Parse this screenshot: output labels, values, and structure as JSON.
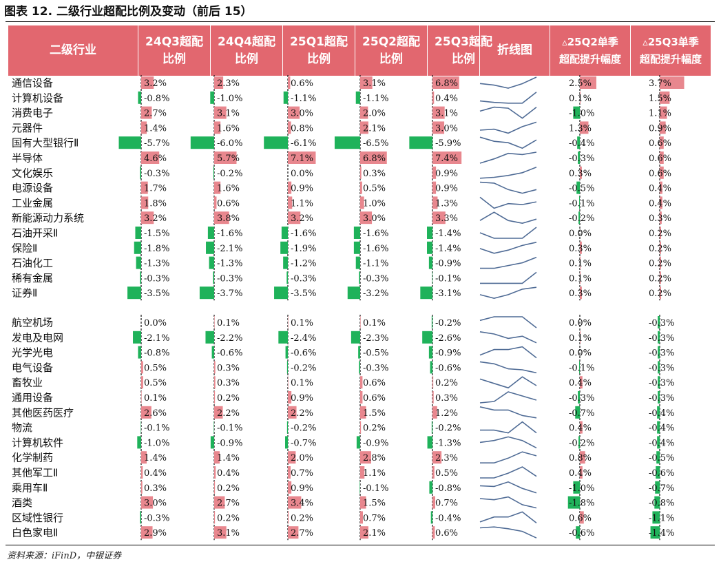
{
  "title": "图表 12. 二级行业超配比例及变动（前后 15）",
  "header": {
    "industry": "二级行业",
    "periods": [
      "24Q3超配\n比例",
      "24Q4超配\n比例",
      "25Q1超配\n比例",
      "25Q2超配\n比例",
      "25Q3超配\n比例"
    ],
    "sparkline": "折线图",
    "chg1": "▵25Q2单季\n超配提升幅度",
    "chg2": "▵25Q3单季\n超配提升幅度"
  },
  "source": "资料来源：iFinD，中银证券",
  "colors": {
    "header": "#e2676f",
    "positive": "#e8878e",
    "negative": "#1fb25a",
    "sparkline": "#4f6b95"
  },
  "chart_data": {
    "type": "table",
    "columns": [
      "二级行业",
      "24Q3超配比例",
      "24Q4超配比例",
      "25Q1超配比例",
      "25Q2超配比例",
      "25Q3超配比例",
      "折线图",
      "▵25Q2单季超配提升幅度",
      "▵25Q3单季超配提升幅度"
    ],
    "groups": [
      {
        "rows": [
          {
            "name": "通信设备",
            "values": [
              3.2,
              2.3,
              0.6,
              3.1,
              6.8
            ],
            "chg1": 2.5,
            "chg2": 3.7
          },
          {
            "name": "计算机设备",
            "values": [
              -0.8,
              -1.0,
              -1.1,
              -1.1,
              0.4
            ],
            "chg1": 0.1,
            "chg2": 1.5
          },
          {
            "name": "消费电子",
            "values": [
              2.7,
              3.1,
              3.0,
              2.0,
              3.1
            ],
            "chg1": -1.0,
            "chg2": 1.1
          },
          {
            "name": "元器件",
            "values": [
              1.4,
              1.6,
              0.8,
              2.1,
              3.0
            ],
            "chg1": 1.3,
            "chg2": 0.9
          },
          {
            "name": "国有大型银行Ⅱ",
            "values": [
              -5.7,
              -6.0,
              -6.1,
              -6.5,
              -5.9
            ],
            "chg1": -0.4,
            "chg2": 0.6
          },
          {
            "name": "半导体",
            "values": [
              4.6,
              5.7,
              7.1,
              6.8,
              7.4
            ],
            "chg1": -0.3,
            "chg2": 0.6
          },
          {
            "name": "文化娱乐",
            "values": [
              -0.3,
              -0.2,
              0.0,
              0.3,
              0.9
            ],
            "chg1": 0.3,
            "chg2": 0.6
          },
          {
            "name": "电源设备",
            "values": [
              1.7,
              1.6,
              0.9,
              0.5,
              0.9
            ],
            "chg1": -0.5,
            "chg2": 0.4
          },
          {
            "name": "工业金属",
            "values": [
              1.8,
              0.6,
              1.1,
              1.0,
              1.3
            ],
            "chg1": -0.1,
            "chg2": 0.4
          },
          {
            "name": "新能源动力系统",
            "values": [
              3.2,
              3.8,
              3.2,
              3.0,
              3.3
            ],
            "chg1": -0.2,
            "chg2": 0.3
          },
          {
            "name": "石油开采Ⅱ",
            "values": [
              -1.5,
              -1.6,
              -1.6,
              -1.6,
              -1.4
            ],
            "chg1": 0.0,
            "chg2": 0.2
          },
          {
            "name": "保险Ⅱ",
            "values": [
              -1.8,
              -2.1,
              -1.9,
              -1.6,
              -1.4
            ],
            "chg1": 0.3,
            "chg2": 0.2
          },
          {
            "name": "石油化工",
            "values": [
              -1.3,
              -1.3,
              -1.2,
              -1.1,
              -0.9
            ],
            "chg1": 0.1,
            "chg2": 0.2
          },
          {
            "name": "稀有金属",
            "values": [
              -0.3,
              -0.3,
              -0.3,
              -0.3,
              -0.1
            ],
            "chg1": 0.1,
            "chg2": 0.2
          },
          {
            "name": "证券Ⅱ",
            "values": [
              -3.5,
              -3.7,
              -3.5,
              -3.2,
              -3.1
            ],
            "chg1": 0.3,
            "chg2": 0.2
          }
        ]
      },
      {
        "rows": [
          {
            "name": "航空机场",
            "values": [
              0.0,
              0.1,
              0.1,
              0.1,
              -0.2
            ],
            "chg1": 0.0,
            "chg2": -0.3
          },
          {
            "name": "发电及电网",
            "values": [
              -2.1,
              -2.2,
              -2.4,
              -2.3,
              -2.6
            ],
            "chg1": 0.1,
            "chg2": -0.3
          },
          {
            "name": "光学光电",
            "values": [
              -0.8,
              -0.6,
              -0.6,
              -0.5,
              -0.9
            ],
            "chg1": 0.0,
            "chg2": -0.3
          },
          {
            "name": "电气设备",
            "values": [
              0.5,
              0.3,
              -0.2,
              -0.3,
              -0.6
            ],
            "chg1": -0.1,
            "chg2": -0.3
          },
          {
            "name": "畜牧业",
            "values": [
              0.5,
              0.3,
              0.1,
              0.6,
              0.2
            ],
            "chg1": 0.4,
            "chg2": -0.3
          },
          {
            "name": "通用设备",
            "values": [
              0.1,
              0.2,
              0.9,
              0.6,
              0.3
            ],
            "chg1": -0.3,
            "chg2": -0.3
          },
          {
            "name": "其他医药医疗",
            "values": [
              2.6,
              2.2,
              2.2,
              1.5,
              1.2
            ],
            "chg1": -0.7,
            "chg2": -0.4
          },
          {
            "name": "物流",
            "values": [
              -0.1,
              -0.1,
              -0.2,
              0.2,
              -0.2
            ],
            "chg1": 0.4,
            "chg2": -0.4
          },
          {
            "name": "计算机软件",
            "values": [
              -1.0,
              -0.9,
              -0.7,
              -0.9,
              -1.3
            ],
            "chg1": -0.2,
            "chg2": -0.4
          },
          {
            "name": "化学制药",
            "values": [
              1.4,
              1.4,
              2.0,
              2.8,
              2.3
            ],
            "chg1": 0.8,
            "chg2": -0.5
          },
          {
            "name": "其他军工Ⅱ",
            "values": [
              0.4,
              0.4,
              0.7,
              1.1,
              0.5
            ],
            "chg1": 0.4,
            "chg2": -0.6
          },
          {
            "name": "乘用车Ⅱ",
            "values": [
              0.3,
              0.2,
              0.9,
              -0.1,
              -0.8
            ],
            "chg1": -1.0,
            "chg2": -0.7
          },
          {
            "name": "酒类",
            "values": [
              3.0,
              2.7,
              3.4,
              1.5,
              0.7
            ],
            "chg1": -1.8,
            "chg2": -0.8
          },
          {
            "name": "区域性银行",
            "values": [
              -0.3,
              0.2,
              0.2,
              0.7,
              -0.4
            ],
            "chg1": 0.6,
            "chg2": -1.1
          },
          {
            "name": "白色家电Ⅱ",
            "values": [
              2.9,
              3.1,
              2.7,
              2.1,
              0.6
            ],
            "chg1": -0.6,
            "chg2": -1.4
          }
        ]
      }
    ]
  }
}
